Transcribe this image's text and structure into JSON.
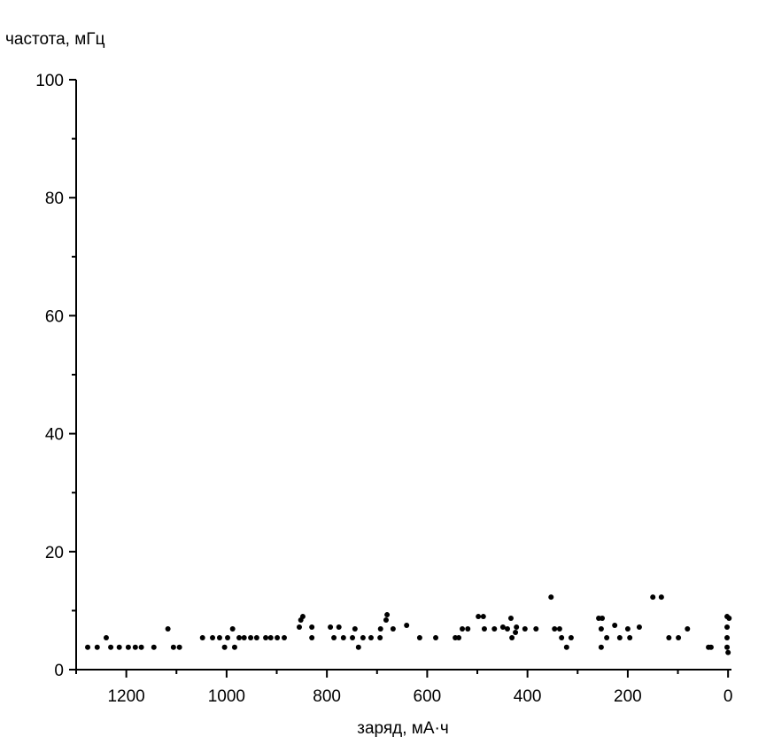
{
  "chart_data": {
    "type": "scatter",
    "ylabel": "частота, мГц",
    "xlabel": "заряд, мА·ч",
    "color": "#000000",
    "xlim": [
      1300,
      -5
    ],
    "xticks": [
      1200,
      1000,
      800,
      600,
      400,
      200,
      0
    ],
    "xminorticks": [
      1300,
      1100,
      900,
      700,
      500,
      300,
      100
    ],
    "ylim": [
      0,
      100
    ],
    "yticks": [
      0,
      20,
      40,
      60,
      80,
      100
    ],
    "yminorticks": [
      10,
      30,
      50,
      70,
      90
    ],
    "x": [
      1277,
      1258,
      1240,
      1231,
      1214,
      1196,
      1182,
      1170,
      1145,
      1117,
      1106,
      1094,
      1048,
      1028,
      1014,
      1004,
      998,
      988,
      984,
      975,
      965,
      952,
      940,
      922,
      912,
      899,
      885,
      855,
      848,
      852,
      830,
      830,
      793,
      786,
      776,
      767,
      749,
      744,
      737,
      728,
      712,
      694,
      693,
      682,
      680,
      668,
      641,
      615,
      583,
      544,
      537,
      530,
      519,
      498,
      488,
      486,
      466,
      449,
      440,
      433,
      431,
      424,
      422,
      405,
      383,
      353,
      346,
      336,
      332,
      322,
      313,
      258,
      251,
      253,
      253,
      242,
      226,
      216,
      200,
      196,
      177,
      150,
      133,
      118,
      99,
      81,
      39,
      34,
      2,
      -2,
      2,
      2,
      2,
      0
    ],
    "y": [
      3.8,
      3.8,
      5.4,
      3.8,
      3.8,
      3.8,
      3.8,
      3.8,
      3.8,
      6.9,
      3.8,
      3.8,
      5.4,
      5.4,
      5.4,
      3.8,
      5.4,
      6.9,
      3.8,
      5.4,
      5.4,
      5.4,
      5.4,
      5.4,
      5.4,
      5.4,
      5.4,
      7.2,
      9.0,
      8.4,
      7.2,
      5.4,
      7.2,
      5.4,
      7.2,
      5.4,
      5.4,
      6.9,
      3.8,
      5.4,
      5.4,
      5.4,
      6.9,
      8.4,
      9.3,
      6.9,
      7.5,
      5.4,
      5.4,
      5.4,
      5.4,
      6.9,
      6.9,
      9.0,
      9.0,
      6.9,
      6.9,
      7.2,
      6.9,
      8.7,
      5.4,
      6.3,
      7.2,
      6.9,
      6.9,
      12.3,
      6.9,
      6.9,
      5.4,
      3.8,
      5.4,
      8.7,
      8.7,
      6.9,
      3.8,
      5.4,
      7.5,
      5.4,
      6.9,
      5.4,
      7.2,
      12.3,
      12.3,
      5.4,
      5.4,
      6.9,
      3.8,
      3.8,
      9.0,
      8.7,
      7.2,
      5.4,
      3.8,
      2.9
    ]
  }
}
